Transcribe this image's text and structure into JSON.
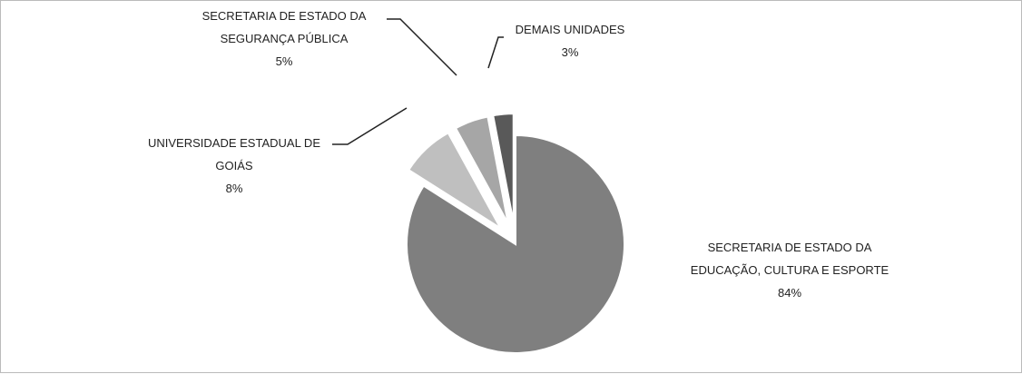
{
  "chart_data": {
    "type": "pie",
    "categories": [
      "SECRETARIA DE ESTADO DA EDUCAÇÃO, CULTURA E ESPORTE",
      "UNIVERSIDADE ESTADUAL DE GOIÁS",
      "SECRETARIA DE ESTADO DA SEGURANÇA PÚBLICA",
      "DEMAIS UNIDADES"
    ],
    "values": [
      84,
      8,
      5,
      3
    ],
    "value_labels": [
      "84%",
      "8%",
      "5%",
      "3%"
    ],
    "colors": [
      "#7f7f7f",
      "#bfbfbf",
      "#a6a6a6",
      "#595959"
    ]
  }
}
